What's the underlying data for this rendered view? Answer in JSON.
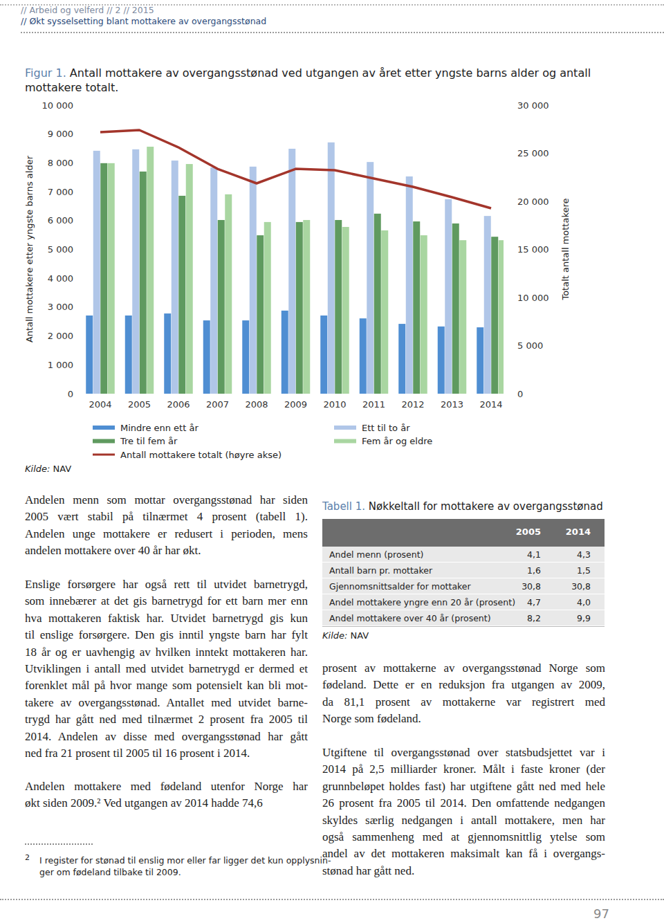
{
  "header": {
    "lines": [
      "// Arbeid og velferd // 2 // 2015",
      "// Økt sysselsetting blant mottakere av overgangsstønad"
    ]
  },
  "figure": {
    "label": "Figur 1.",
    "title_lines": [
      "Antall mottakere av overgangsstønad ved utgangen av året etter yngste barns alder og antall",
      "mottakere totalt."
    ],
    "source_label": "Kilde:",
    "source": "NAV"
  },
  "chart_data": {
    "type": "bar",
    "categories": [
      "2004",
      "2005",
      "2006",
      "2007",
      "2008",
      "2009",
      "2010",
      "2011",
      "2012",
      "2013",
      "2014"
    ],
    "y_label": "Antall mottakere etter yngste barns alder",
    "y2_label": "Totalt antall mottakere",
    "ylim": [
      0,
      10000
    ],
    "yticks": [
      0,
      {
        "value": 1000,
        "label": "1 000"
      },
      {
        "value": 2000,
        "label": "2 000"
      },
      {
        "value": 3000,
        "label": "3 000"
      },
      {
        "value": 4000,
        "label": "4 000"
      },
      {
        "value": 5000,
        "label": "5 000"
      },
      {
        "value": 6000,
        "label": "6 000"
      },
      {
        "value": 7000,
        "label": "7 000"
      },
      {
        "value": 8000,
        "label": "8 000"
      },
      {
        "value": 9000,
        "label": "9 000"
      },
      {
        "value": 10000,
        "label": "10 000"
      }
    ],
    "y2lim": [
      0,
      30000
    ],
    "y2ticks": [
      0,
      {
        "value": 5000,
        "label": "5 000"
      },
      {
        "value": 10000,
        "label": "10 000"
      },
      {
        "value": 15000,
        "label": "15 000"
      },
      {
        "value": 20000,
        "label": "20 000"
      },
      {
        "value": 25000,
        "label": "25 000"
      },
      {
        "value": 30000,
        "label": "30 000"
      }
    ],
    "grid": false,
    "legend": "bottom",
    "series": [
      {
        "name": "Mindre enn ett år",
        "type": "bar",
        "color": "#4f8ed2",
        "values": [
          2710,
          2710,
          2780,
          2540,
          2540,
          2880,
          2710,
          2610,
          2420,
          2330,
          2300
        ]
      },
      {
        "name": "Ett til to år",
        "type": "bar",
        "color": "#b0c6e8",
        "values": [
          8420,
          8470,
          8080,
          7840,
          7870,
          8490,
          8710,
          8030,
          7530,
          6740,
          6160
        ]
      },
      {
        "name": "Tre til fem år",
        "type": "bar",
        "color": "#5f9a5f",
        "values": [
          7990,
          7700,
          6860,
          6020,
          5490,
          5950,
          6020,
          6240,
          5970,
          5900,
          5440
        ]
      },
      {
        "name": "Fem år og eldre",
        "type": "bar",
        "color": "#a9d6a1",
        "values": [
          7990,
          8560,
          7960,
          6910,
          5950,
          6020,
          5780,
          5660,
          5490,
          5320,
          5320
        ]
      },
      {
        "name": "Antall mottakere totalt (høyre akse)",
        "type": "line",
        "axis": "y2",
        "color": "#a3352b",
        "values": [
          27190,
          27410,
          25610,
          23380,
          21870,
          23380,
          23240,
          22370,
          21510,
          20430,
          19280
        ]
      }
    ]
  },
  "body": {
    "left": [
      [
        "Andelen menn som mottar overgangsstønad har siden",
        "2005 vært stabil på tilnærmet 4 prosent (tabell 1).",
        "Andelen unge mottakere er redusert i perioden, mens",
        "andelen mottakere over 40 år har økt."
      ],
      [
        "Enslige forsørgere har også rett til utvidet barnetrygd,",
        "som innebærer at det gis barnetrygd for ett barn mer enn",
        "hva mottakeren faktisk har. Utvidet barnetrygd gis kun",
        "til enslige forsørgere. Den gis inntil yngste barn har fylt",
        "18 år og er uavhengig av hvilken inntekt mottakeren har.",
        "Utviklingen i antall med utvidet barnetrygd er dermed et",
        "forenklet mål på hvor mange som potensielt kan bli mot-",
        "takere av overgangsstønad. Antallet med utvidet barne-",
        "trygd har gått ned med tilnærmet 2 prosent fra 2005 til",
        "2014. Andelen av disse med overgangsstønad har gått",
        "ned fra 21 prosent til 2005 til 16 prosent i 2014."
      ],
      [
        "Andelen mottakere med fødeland utenfor Norge har",
        "økt siden 2009.² Ved utgangen av 2014 hadde 74,6"
      ]
    ],
    "right": [
      [
        "prosent av mottakerne av overgangsstønad Norge som",
        "fødeland. Dette er en reduksjon fra utgangen av 2009,",
        "da 81,1 prosent av mottakerne var registrert med",
        "Norge som fødeland."
      ],
      [
        "Utgiftene til overgangsstønad over statsbudsjettet var i",
        "2014 på 2,5 milliarder kroner. Målt i faste kroner (der",
        "grunnbeløpet holdes fast) har utgiftene gått ned med hele",
        "26 prosent fra 2005 til 2014. Den omfattende nedgangen",
        "skyldes særlig nedgangen i antall mottakere, men har",
        "også sammenheng med at gjennomsnittlig ytelse som",
        "andel av det mottakeren maksimalt kan få i overgangs-",
        "stønad har gått ned."
      ]
    ]
  },
  "footnote": {
    "marker": "2",
    "lines": [
      "I register for stønad til enslig mor eller far ligger det kun opplysnin-",
      "ger om fødeland tilbake til 2009."
    ]
  },
  "table": {
    "label": "Tabell 1.",
    "title": "Nøkkeltall for mottakere av overgangsstønad",
    "columns": [
      "2005",
      "2014"
    ],
    "rows": [
      [
        "Andel menn (prosent)",
        "4,1",
        "4,3"
      ],
      [
        "Antall barn pr. mottaker",
        "1,6",
        "1,5"
      ],
      [
        "Gjennomsnittsalder for mottaker",
        "30,8",
        "30,8"
      ],
      [
        "Andel mottakere yngre enn 20 år (prosent)",
        "4,7",
        "4,0"
      ],
      [
        "Andel mottakere over 40 år (prosent)",
        "8,2",
        "9,9"
      ]
    ],
    "source_label": "Kilde:",
    "source": "NAV"
  },
  "page_number": "97"
}
